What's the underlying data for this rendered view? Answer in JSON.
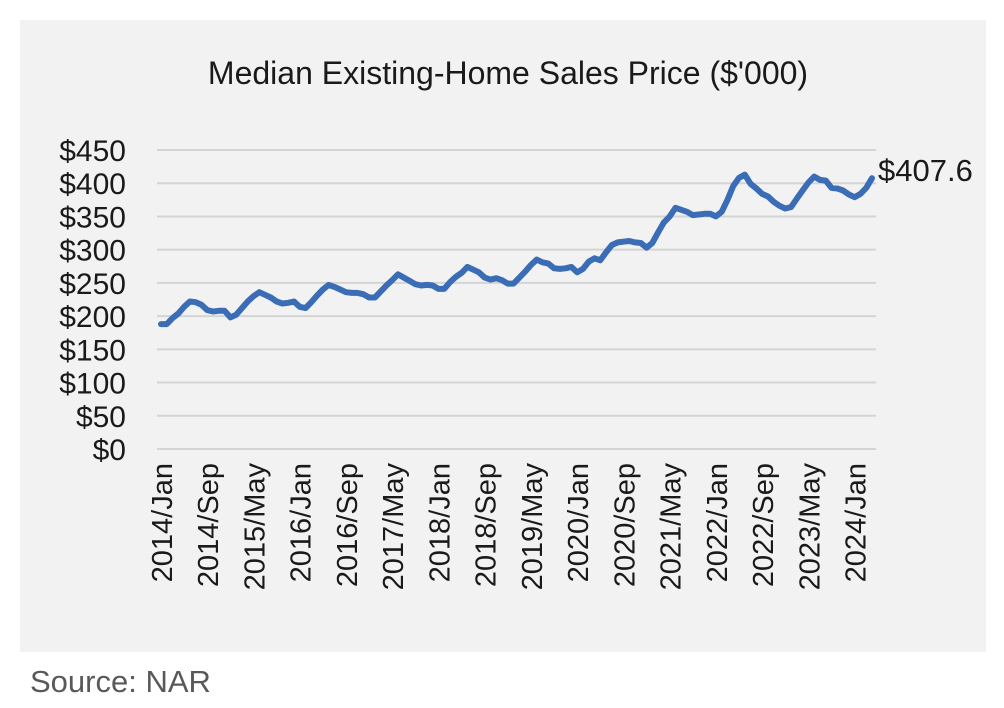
{
  "chart_data": {
    "type": "line",
    "title": "Median Existing-Home Sales Price ($'000)",
    "xlabel": "",
    "ylabel": "",
    "ylim": [
      0,
      450
    ],
    "y_ticks": [
      "$0",
      "$50",
      "$100",
      "$150",
      "$200",
      "$250",
      "$300",
      "$350",
      "$400",
      "$450"
    ],
    "y_tick_values": [
      0,
      50,
      100,
      150,
      200,
      250,
      300,
      350,
      400,
      450
    ],
    "x_tick_labels": [
      "2014/Jan",
      "2014/Sep",
      "2015/May",
      "2016/Jan",
      "2016/Sep",
      "2017/May",
      "2018/Jan",
      "2018/Sep",
      "2019/May",
      "2020/Jan",
      "2020/Sep",
      "2021/May",
      "2022/Jan",
      "2022/Sep",
      "2023/May",
      "2024/Jan"
    ],
    "grid": true,
    "line_color": "#3a6db5",
    "end_label": "$407.6",
    "series": [
      {
        "x": [
          "2014/Jan",
          "2014/Feb",
          "2014/Mar",
          "2014/Apr",
          "2014/May",
          "2014/Jun",
          "2014/Jul",
          "2014/Aug",
          "2014/Sep",
          "2014/Oct",
          "2014/Nov",
          "2014/Dec",
          "2015/Jan",
          "2015/Feb",
          "2015/Mar",
          "2015/Apr",
          "2015/May",
          "2015/Jun",
          "2015/Jul",
          "2015/Aug",
          "2015/Sep",
          "2015/Oct",
          "2015/Nov",
          "2015/Dec",
          "2016/Jan",
          "2016/Feb",
          "2016/Mar",
          "2016/Apr",
          "2016/May",
          "2016/Jun",
          "2016/Jul",
          "2016/Aug",
          "2016/Sep",
          "2016/Oct",
          "2016/Nov",
          "2016/Dec",
          "2017/Jan",
          "2017/Feb",
          "2017/Mar",
          "2017/Apr",
          "2017/May",
          "2017/Jun",
          "2017/Jul",
          "2017/Aug",
          "2017/Sep",
          "2017/Oct",
          "2017/Nov",
          "2017/Dec",
          "2018/Jan",
          "2018/Feb",
          "2018/Mar",
          "2018/Apr",
          "2018/May",
          "2018/Jun",
          "2018/Jul",
          "2018/Aug",
          "2018/Sep",
          "2018/Oct",
          "2018/Nov",
          "2018/Dec",
          "2019/Jan",
          "2019/Feb",
          "2019/Mar",
          "2019/Apr",
          "2019/May",
          "2019/Jun",
          "2019/Jul",
          "2019/Aug",
          "2019/Sep",
          "2019/Oct",
          "2019/Nov",
          "2019/Dec",
          "2020/Jan",
          "2020/Feb",
          "2020/Mar",
          "2020/Apr",
          "2020/May",
          "2020/Jun",
          "2020/Jul",
          "2020/Aug",
          "2020/Sep",
          "2020/Oct",
          "2020/Nov",
          "2020/Dec",
          "2021/Jan",
          "2021/Feb",
          "2021/Mar",
          "2021/Apr",
          "2021/May",
          "2021/Jun",
          "2021/Jul",
          "2021/Aug",
          "2021/Sep",
          "2021/Oct",
          "2021/Nov",
          "2021/Dec",
          "2022/Jan",
          "2022/Feb",
          "2022/Mar",
          "2022/Apr",
          "2022/May",
          "2022/Jun",
          "2022/Jul",
          "2022/Aug",
          "2022/Sep",
          "2022/Oct",
          "2022/Nov",
          "2022/Dec",
          "2023/Jan",
          "2023/Feb",
          "2023/Mar",
          "2023/Apr",
          "2023/May",
          "2023/Jun",
          "2023/Jul",
          "2023/Aug",
          "2023/Sep",
          "2023/Oct",
          "2023/Nov",
          "2023/Dec",
          "2024/Jan",
          "2024/Feb",
          "2024/Mar",
          "2024/Apr"
        ],
        "values": [
          188,
          188,
          197,
          204,
          214,
          222,
          221,
          217,
          209,
          207,
          208,
          208,
          198,
          202,
          212,
          222,
          230,
          236,
          232,
          228,
          222,
          219,
          220,
          222,
          214,
          212,
          221,
          231,
          240,
          247,
          244,
          240,
          236,
          235,
          235,
          233,
          228,
          228,
          237,
          246,
          254,
          263,
          258,
          253,
          248,
          246,
          247,
          246,
          241,
          241,
          251,
          259,
          265,
          274,
          270,
          266,
          258,
          255,
          257,
          254,
          249,
          249,
          258,
          267,
          277,
          285,
          281,
          279,
          272,
          271,
          272,
          274,
          266,
          271,
          282,
          287,
          284,
          296,
          307,
          311,
          312,
          313,
          311,
          310,
          303,
          310,
          326,
          341,
          350,
          363,
          360,
          357,
          352,
          353,
          354,
          354,
          350,
          357,
          375,
          396,
          408,
          413,
          399,
          392,
          384,
          380,
          372,
          366,
          362,
          364,
          377,
          389,
          401,
          410,
          405,
          404,
          393,
          392,
          389,
          383,
          379,
          384,
          393,
          407.6
        ]
      }
    ]
  },
  "source": "Source: NAR"
}
